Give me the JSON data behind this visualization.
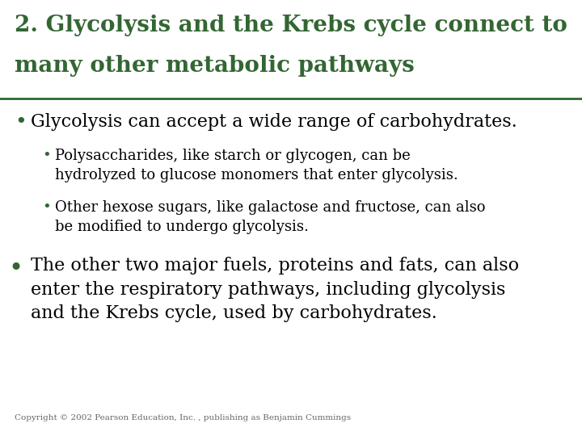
{
  "background_color": "#ffffff",
  "title_line1": "2. Glycolysis and the Krebs cycle connect to",
  "title_line2": "many other metabolic pathways",
  "title_color": "#2d6a2d",
  "title_fontsize": 20,
  "separator_color": "#2d6a2d",
  "bullet1_text": "Glycolysis can accept a wide range of carbohydrates.",
  "bullet1_fontsize": 16,
  "sub_bullet1_text": "Polysaccharides, like starch or glycogen, can be\nhydrolyzed to glucose monomers that enter glycolysis.",
  "sub_bullet1_fontsize": 13,
  "sub_bullet2_text": "Other hexose sugars, like galactose and fructose, can also\nbe modified to undergo glycolysis.",
  "sub_bullet2_fontsize": 13,
  "bullet2_text": "The other two major fuels, proteins and fats, can also\nenter the respiratory pathways, including glycolysis\nand the Krebs cycle, used by carbohydrates.",
  "bullet2_fontsize": 16,
  "copyright": "Copyright © 2002 Pearson Education, Inc. , publishing as Benjamin Cummings",
  "copyright_fontsize": 7.5,
  "copyright_color": "#666666",
  "text_color": "#000000",
  "green_color": "#336633"
}
